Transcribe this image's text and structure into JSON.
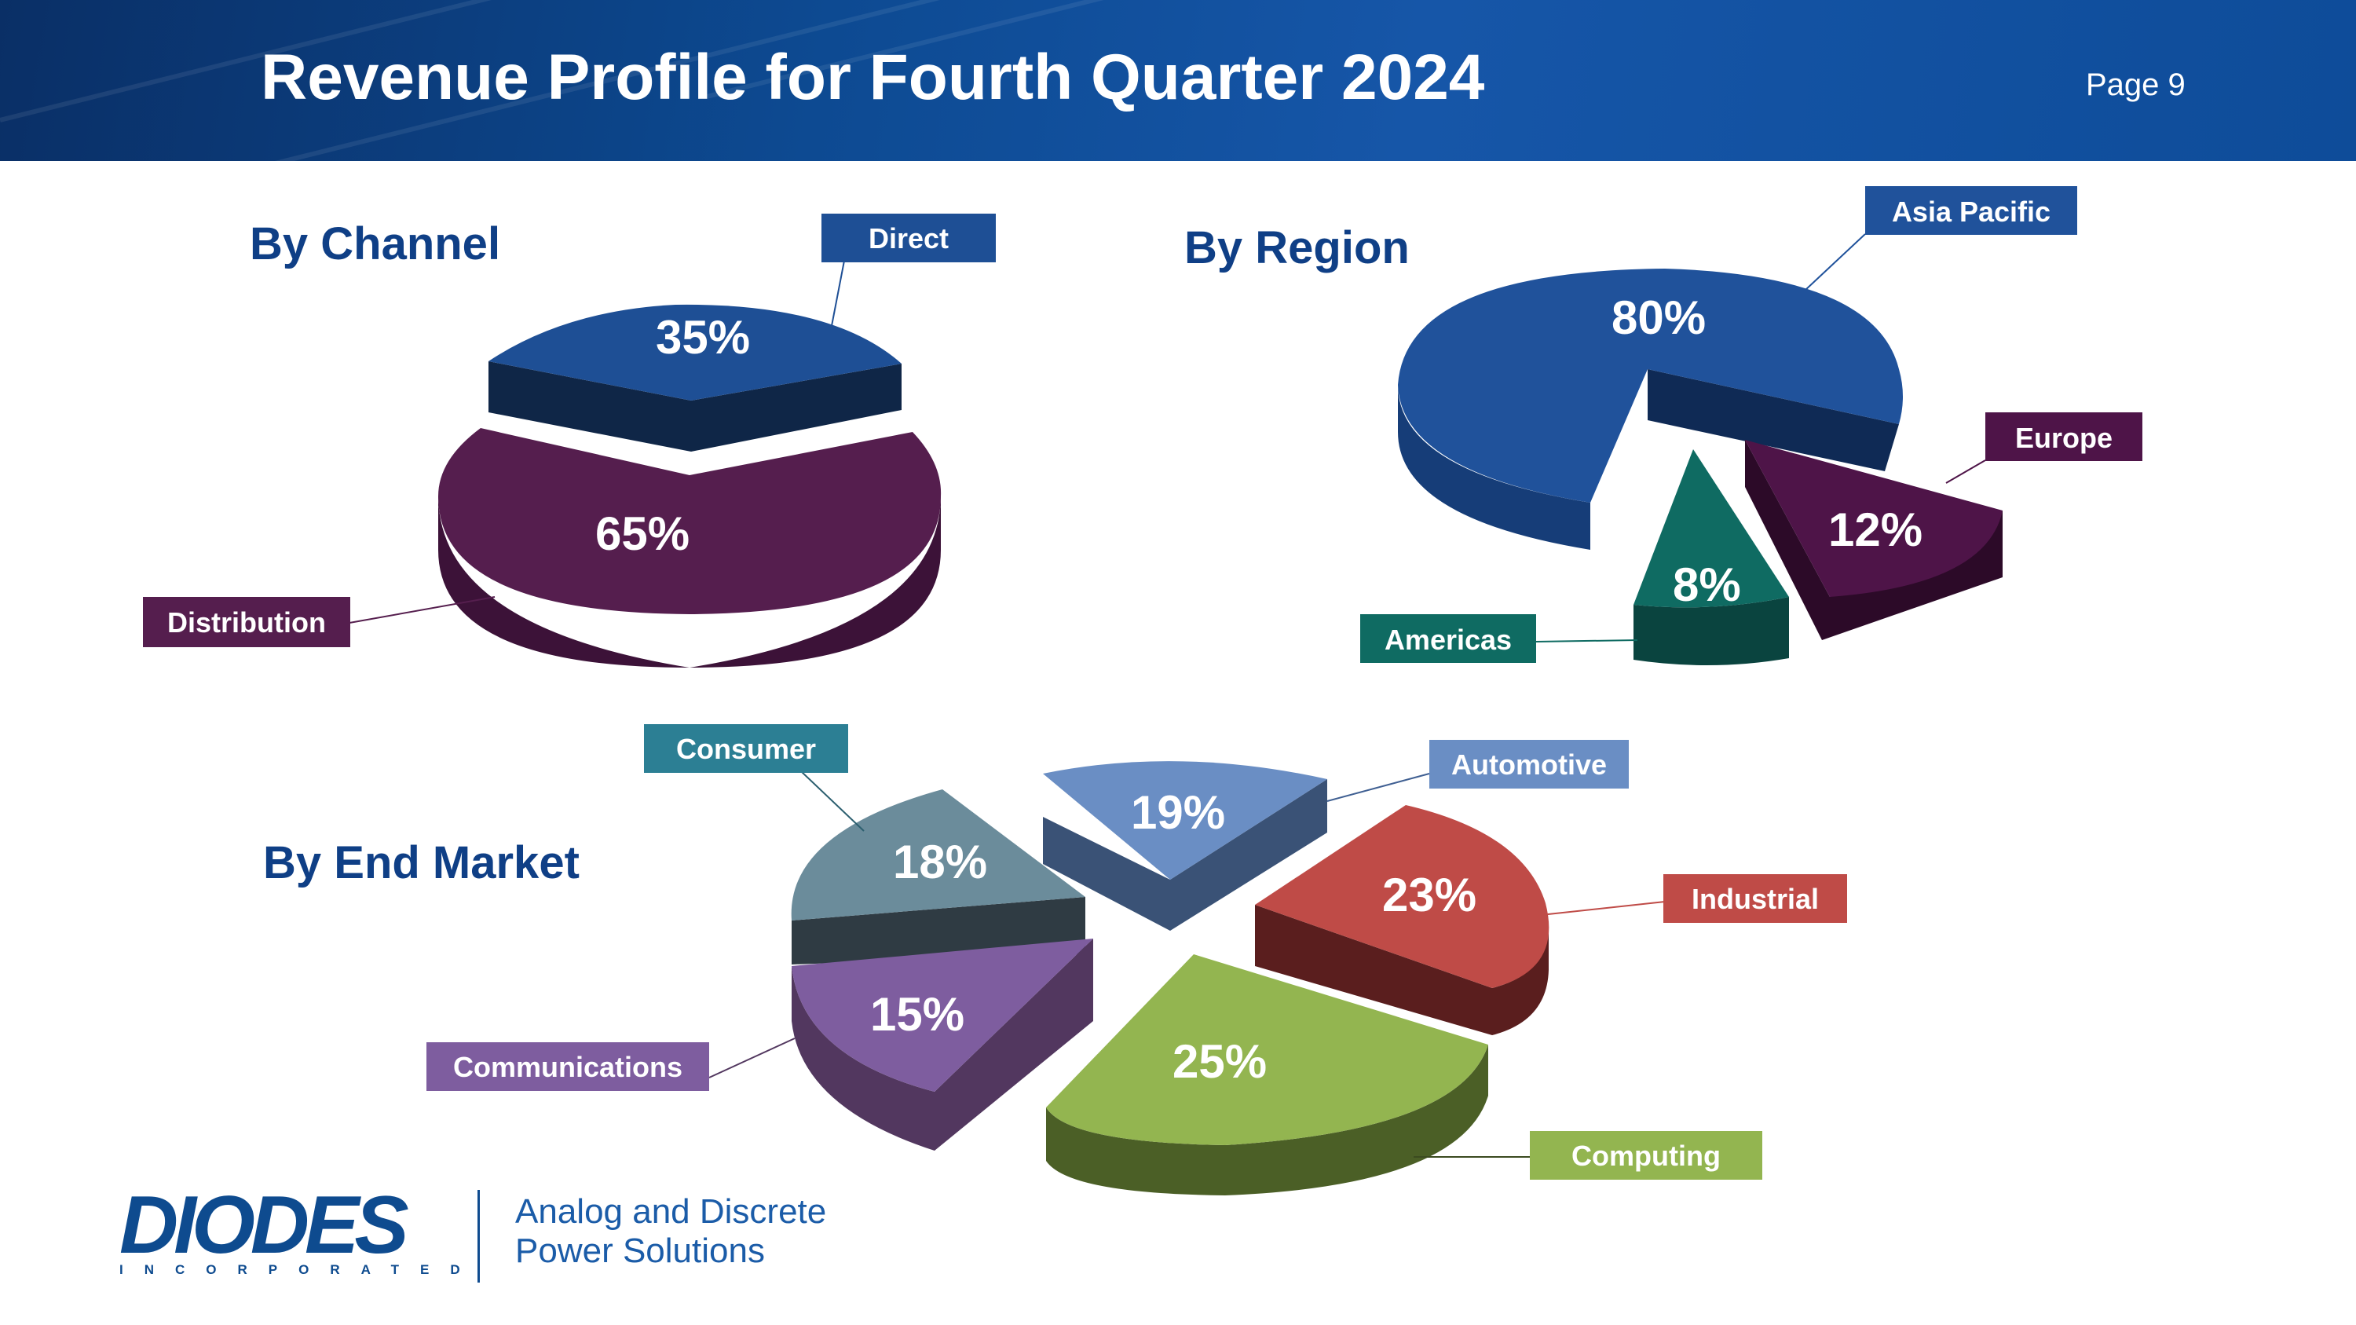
{
  "header": {
    "title": "Revenue Profile for Fourth Quarter 2024",
    "page_label": "Page 9"
  },
  "chart_data": [
    {
      "type": "pie",
      "title": "By Channel",
      "categories": [
        "Direct",
        "Distribution"
      ],
      "values": [
        35,
        65
      ],
      "colors": [
        "#1e4f95",
        "#551e4e"
      ]
    },
    {
      "type": "pie",
      "title": "By Region",
      "categories": [
        "Asia Pacific",
        "Europe",
        "Americas"
      ],
      "values": [
        80,
        12,
        8
      ],
      "colors": [
        "#20529b",
        "#4e1448",
        "#0f6b62"
      ]
    },
    {
      "type": "pie",
      "title": "By End Market",
      "categories": [
        "Automotive",
        "Industrial",
        "Computing",
        "Communications",
        "Consumer"
      ],
      "values": [
        19,
        23,
        25,
        15,
        18
      ],
      "colors": [
        "#6a8ec4",
        "#bf4b47",
        "#93b550",
        "#7e5d9f",
        "#6b8c9b"
      ]
    }
  ],
  "footer": {
    "logo_text": "DIODES",
    "logo_sub": "INCORPORATED",
    "tagline_line1": "Analog and Discrete",
    "tagline_line2": "Power Solutions"
  }
}
